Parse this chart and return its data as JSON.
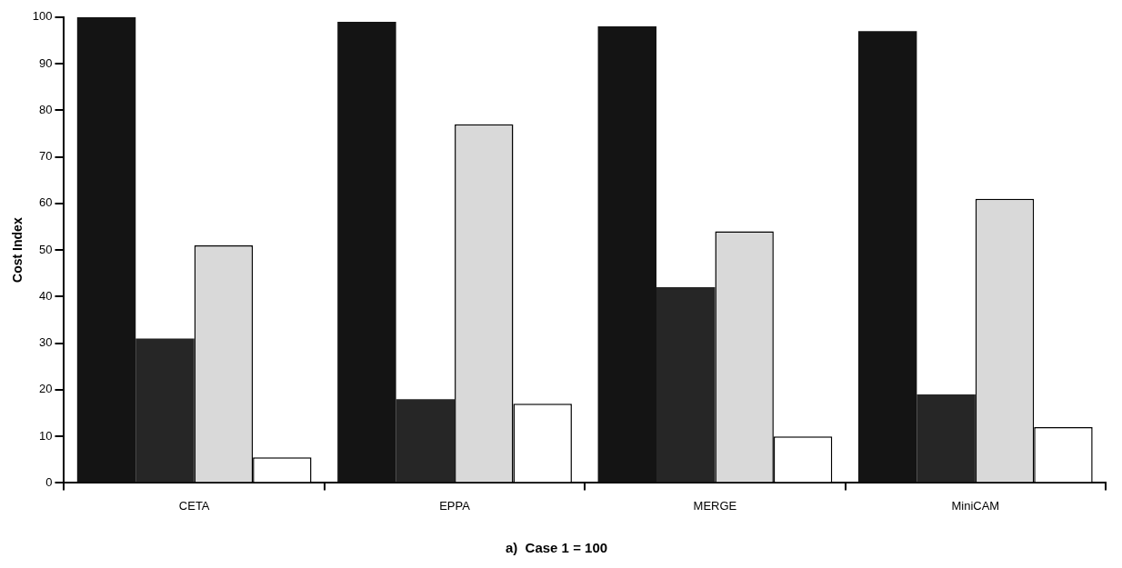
{
  "chart_data": {
    "type": "bar",
    "title": "a)  Case 1 = 100",
    "ylabel": "Cost Index",
    "categories": [
      "CETA",
      "EPPA",
      "MERGE",
      "MiniCAM"
    ],
    "series": [
      {
        "color": "#141414",
        "values": [
          100,
          99,
          98,
          97
        ]
      },
      {
        "color": "#262626",
        "values": [
          31,
          18,
          42,
          19
        ]
      },
      {
        "color": "#d9d9d9",
        "values": [
          51,
          77,
          54,
          61
        ]
      },
      {
        "color": "#ffffff",
        "values": [
          5.5,
          17,
          10,
          12
        ]
      }
    ],
    "ylim": [
      0,
      100
    ],
    "yticks": [
      0,
      10,
      20,
      30,
      40,
      50,
      60,
      70,
      80,
      90,
      100
    ],
    "grid": false,
    "legend": false
  }
}
